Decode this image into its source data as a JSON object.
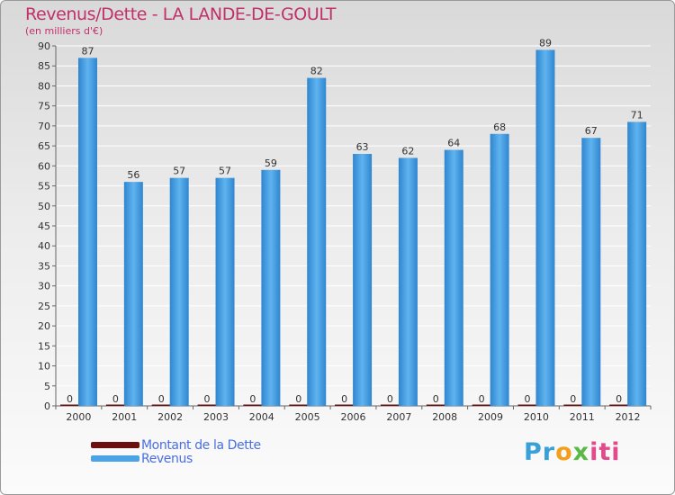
{
  "chart_data": {
    "type": "bar",
    "title": "Revenus/Dette - LA LANDE-DE-GOULT",
    "subtitle": "(en milliers d'€)",
    "categories": [
      "2000",
      "2001",
      "2002",
      "2003",
      "2004",
      "2005",
      "2006",
      "2007",
      "2008",
      "2009",
      "2010",
      "2011",
      "2012"
    ],
    "series": [
      {
        "name": "Montant de la Dette",
        "values": [
          0,
          0,
          0,
          0,
          0,
          0,
          0,
          0,
          0,
          0,
          0,
          0,
          0
        ],
        "color": "#6b0f0f"
      },
      {
        "name": "Revenus",
        "values": [
          87,
          56,
          57,
          57,
          59,
          82,
          63,
          62,
          64,
          68,
          89,
          67,
          71
        ],
        "color": "#4aa3e6"
      }
    ],
    "ylim": [
      0,
      90
    ],
    "yticks": [
      0,
      5,
      10,
      15,
      20,
      25,
      30,
      35,
      40,
      45,
      50,
      55,
      60,
      65,
      70,
      75,
      80,
      85,
      90
    ],
    "xlabel": "",
    "ylabel": "",
    "grid": true,
    "legend": "bottom-left"
  },
  "logo": {
    "p1": "Pr",
    "p2": "o",
    "p3": "x",
    "p4": "iti"
  }
}
